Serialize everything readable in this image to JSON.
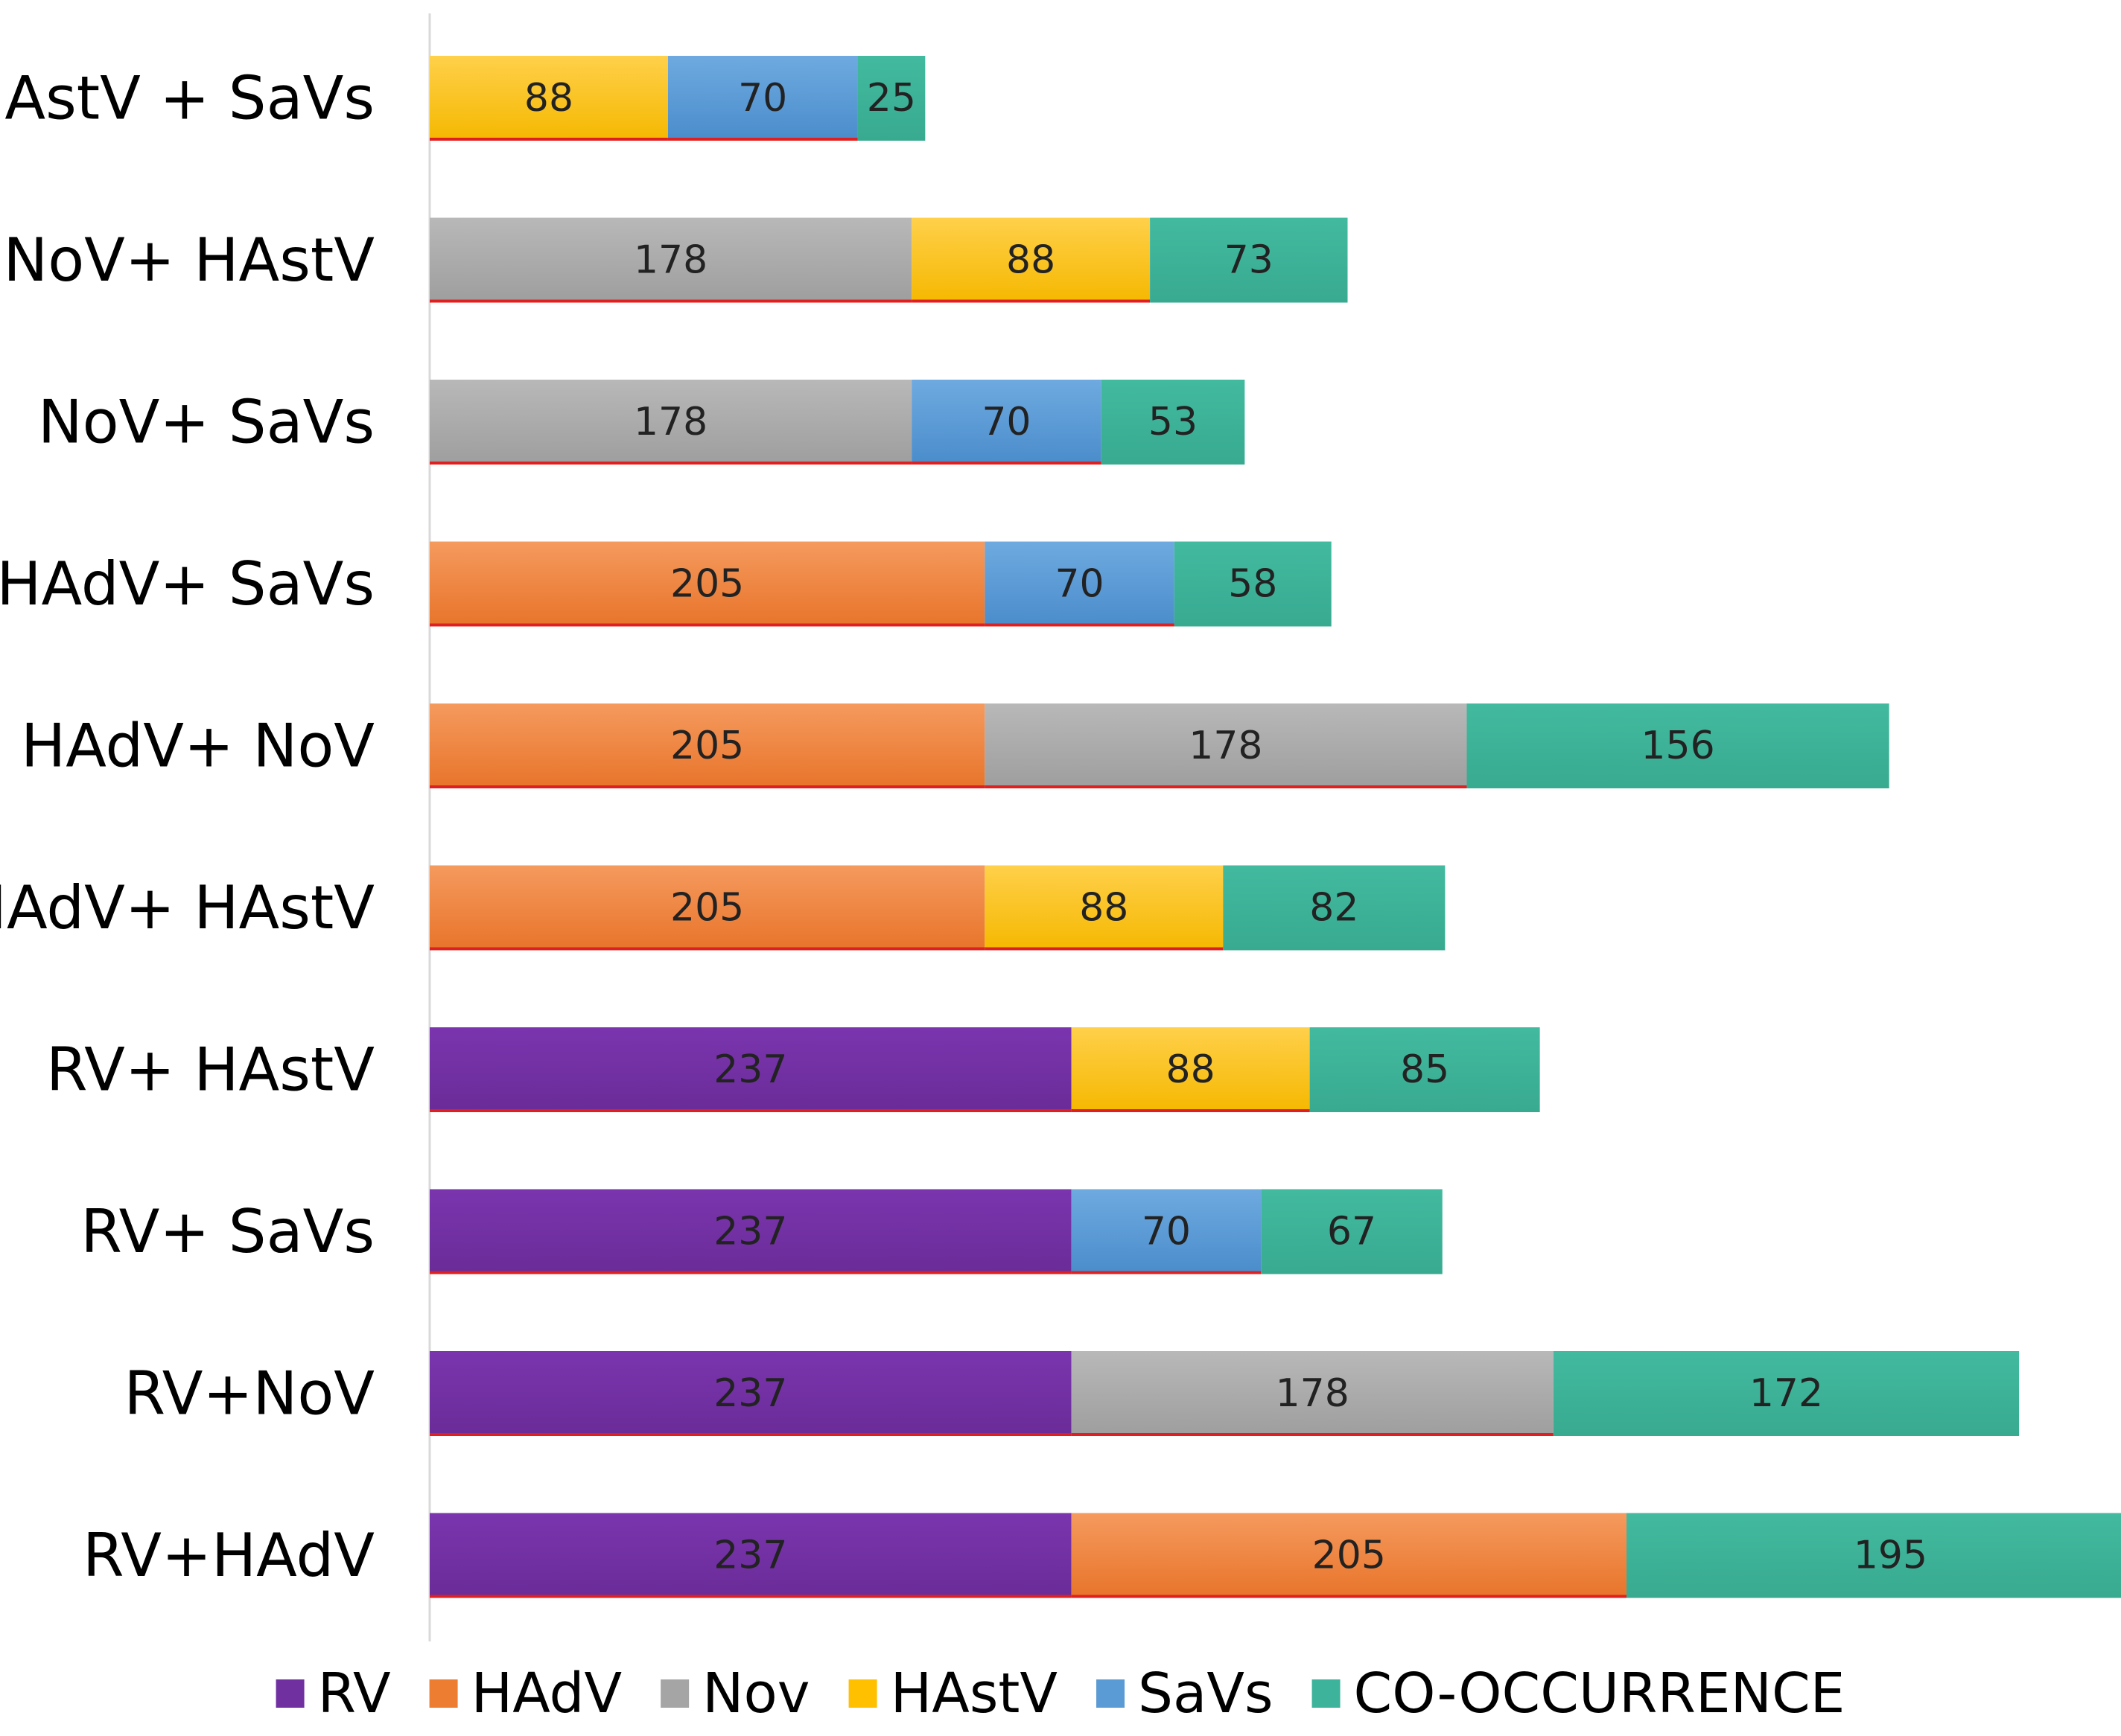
{
  "chart_data": {
    "type": "bar",
    "orientation": "horizontal",
    "stacked": true,
    "title": "",
    "xlabel": "",
    "ylabel": "",
    "grid": false,
    "legend_position": "bottom",
    "categories": [
      "HAstV + SaVs",
      "NoV+ HAstV",
      "NoV+ SaVs",
      "HAdV+ SaVs",
      "HAdV+ NoV",
      "HAdV+ HAstV",
      "RV+ HAstV",
      "RV+ SaVs",
      "RV+NoV",
      "RV+HAdV"
    ],
    "series": [
      {
        "name": "RV",
        "color": "#7030A0",
        "values": [
          null,
          null,
          null,
          null,
          null,
          null,
          237,
          237,
          237,
          237
        ]
      },
      {
        "name": "HAdV",
        "color": "#ED7D31",
        "values": [
          null,
          null,
          null,
          205,
          205,
          205,
          null,
          null,
          null,
          205
        ]
      },
      {
        "name": "Nov",
        "color": "#A5A5A5",
        "values": [
          null,
          178,
          178,
          null,
          178,
          null,
          null,
          null,
          178,
          null
        ]
      },
      {
        "name": "HAstV",
        "color": "#FFC000",
        "values": [
          88,
          88,
          null,
          null,
          null,
          88,
          88,
          null,
          null,
          null
        ]
      },
      {
        "name": "SaVs",
        "color": "#5B9BD5",
        "values": [
          70,
          null,
          70,
          70,
          null,
          null,
          null,
          70,
          null,
          null
        ]
      },
      {
        "name": "CO-OCCURRENCE",
        "color": "#3DB39B",
        "values": [
          25,
          73,
          53,
          58,
          156,
          82,
          85,
          67,
          172,
          195
        ]
      }
    ],
    "xlim": [
      0,
      640
    ]
  }
}
